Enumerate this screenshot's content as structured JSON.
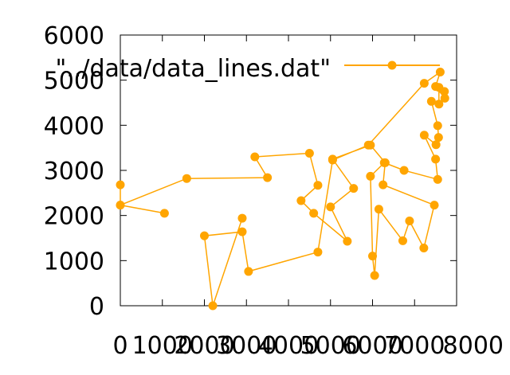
{
  "chart_data": {
    "type": "line",
    "series": [
      {
        "name": "\"../data/data_lines.dat\"",
        "color": "#ffa500",
        "points": [
          [
            0,
            2680
          ],
          [
            0,
            2230
          ],
          [
            1050,
            2050
          ],
          [
            0,
            2230
          ],
          [
            1580,
            2820
          ],
          [
            3500,
            2840
          ],
          [
            3200,
            3300
          ],
          [
            4500,
            3380
          ],
          [
            4700,
            2670
          ],
          [
            4300,
            2330
          ],
          [
            4600,
            2050
          ],
          [
            5400,
            1430
          ],
          [
            5000,
            2190
          ],
          [
            5550,
            2600
          ],
          [
            5050,
            3250
          ],
          [
            5950,
            3560
          ],
          [
            6300,
            3170
          ],
          [
            6250,
            2680
          ],
          [
            7470,
            2230
          ],
          [
            7220,
            1280
          ],
          [
            6880,
            1880
          ],
          [
            6720,
            1440
          ],
          [
            6150,
            2140
          ],
          [
            6050,
            670
          ],
          [
            6000,
            1100
          ],
          [
            5950,
            2870
          ],
          [
            6280,
            3170
          ],
          [
            6750,
            3000
          ],
          [
            7550,
            2800
          ],
          [
            7500,
            3250
          ],
          [
            7230,
            3780
          ],
          [
            7510,
            3570
          ],
          [
            7570,
            3730
          ],
          [
            7550,
            3990
          ],
          [
            7400,
            4530
          ],
          [
            7580,
            4470
          ],
          [
            7580,
            4840
          ],
          [
            7710,
            4750
          ],
          [
            7720,
            4600
          ],
          [
            7500,
            4860
          ],
          [
            7610,
            5180
          ],
          [
            7230,
            4930
          ],
          [
            5900,
            3560
          ],
          [
            5050,
            3230
          ],
          [
            4700,
            1190
          ],
          [
            3050,
            760
          ],
          [
            2900,
            1640
          ],
          [
            2000,
            1550
          ],
          [
            2200,
            0
          ],
          [
            2900,
            1940
          ]
        ]
      }
    ],
    "xlim": [
      0,
      8000
    ],
    "ylim": [
      0,
      6000
    ],
    "xticks": [
      "0",
      "1000",
      "2000",
      "3000",
      "4000",
      "5000",
      "6000",
      "7000",
      "8000"
    ],
    "yticks": [
      "0",
      "1000",
      "2000",
      "3000",
      "4000",
      "5000",
      "6000"
    ],
    "legend": {
      "position": "top-left",
      "label": "\"../data/data_lines.dat\""
    },
    "grid": false,
    "title": "",
    "xlabel": "",
    "ylabel": ""
  }
}
